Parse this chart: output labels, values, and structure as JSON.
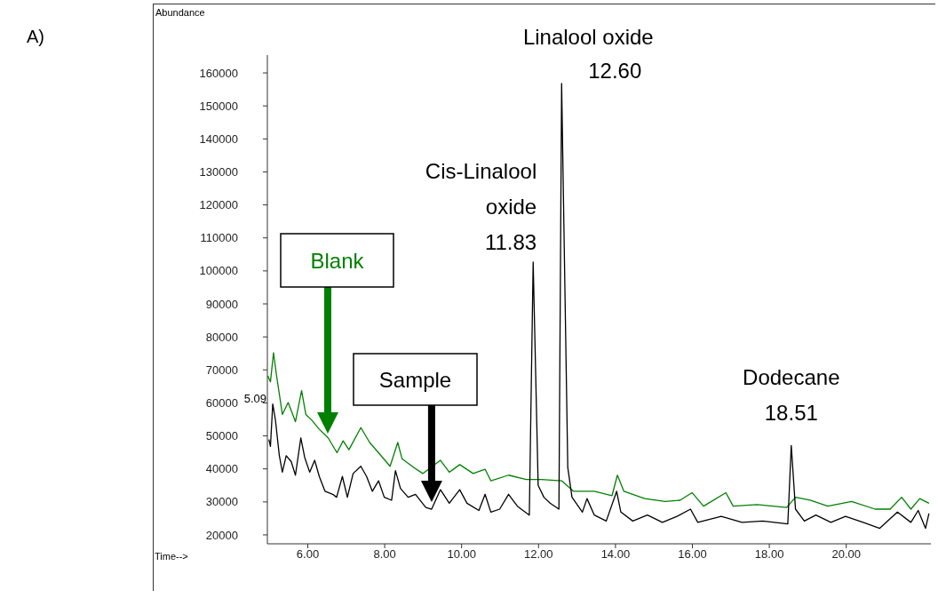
{
  "chart_data": {
    "type": "line",
    "xlabel": "Time-->",
    "ylabel": "Abundance",
    "xlim": [
      4.95,
      22.2
    ],
    "ylim": [
      17300,
      165400
    ],
    "xticks": [
      {
        "value": 6,
        "label": "6.00"
      },
      {
        "value": 8,
        "label": "8.00"
      },
      {
        "value": 10,
        "label": "10.00"
      },
      {
        "value": 12,
        "label": "12.00"
      },
      {
        "value": 14,
        "label": "14.00"
      },
      {
        "value": 16,
        "label": "16.00"
      },
      {
        "value": 18,
        "label": "18.00"
      },
      {
        "value": 20,
        "label": "20.00"
      }
    ],
    "yticks": [
      20000,
      30000,
      40000,
      50000,
      60000,
      70000,
      80000,
      90000,
      100000,
      110000,
      120000,
      130000,
      140000,
      150000,
      160000
    ],
    "series": [
      {
        "name": "Blank",
        "color": "#008000",
        "x": [
          4.96,
          5.03,
          5.11,
          5.19,
          5.34,
          5.49,
          5.68,
          5.84,
          5.95,
          6.11,
          6.3,
          6.53,
          6.76,
          6.92,
          7.07,
          7.38,
          7.61,
          7.84,
          8.14,
          8.34,
          8.45,
          8.76,
          8.99,
          9.45,
          9.68,
          9.95,
          10.3,
          10.61,
          10.76,
          11.22,
          11.68,
          12.07,
          12.6,
          12.91,
          13.45,
          13.91,
          14.05,
          14.22,
          14.76,
          15.29,
          15.68,
          15.99,
          16.29,
          16.87,
          17.06,
          17.68,
          18.45,
          18.68,
          19.06,
          19.52,
          20.14,
          20.75,
          21.14,
          21.44,
          21.68,
          21.91,
          22.15
        ],
        "values": [
          68200,
          66400,
          75200,
          68200,
          56500,
          60100,
          54300,
          63700,
          56500,
          54700,
          52000,
          49400,
          44900,
          48500,
          45800,
          52500,
          48000,
          44900,
          40800,
          48000,
          43100,
          40400,
          38600,
          42600,
          39000,
          41300,
          38600,
          39900,
          36400,
          38100,
          36800,
          36800,
          36400,
          33200,
          33200,
          31900,
          38100,
          33200,
          31000,
          30100,
          30500,
          32800,
          28700,
          32800,
          28700,
          29200,
          28300,
          31400,
          30500,
          28700,
          30100,
          27800,
          27800,
          31400,
          27800,
          31000,
          29600
        ]
      },
      {
        "name": "Sample",
        "color": "#000000",
        "x": [
          4.99,
          5.03,
          5.09,
          5.16,
          5.26,
          5.34,
          5.44,
          5.57,
          5.68,
          5.82,
          5.92,
          6.05,
          6.18,
          6.3,
          6.45,
          6.65,
          6.75,
          6.9,
          7.03,
          7.18,
          7.38,
          7.53,
          7.68,
          7.84,
          7.99,
          8.18,
          8.28,
          8.41,
          8.61,
          8.8,
          9.07,
          9.22,
          9.45,
          9.68,
          9.95,
          10.14,
          10.45,
          10.61,
          10.76,
          10.99,
          11.22,
          11.45,
          11.76,
          11.86,
          11.99,
          12.14,
          12.3,
          12.53,
          12.6,
          12.76,
          12.87,
          13.14,
          13.26,
          13.45,
          13.76,
          14.03,
          14.14,
          14.45,
          14.83,
          15.22,
          15.6,
          15.95,
          16.14,
          16.75,
          17.29,
          17.83,
          18.48,
          18.57,
          18.68,
          18.91,
          19.21,
          19.6,
          19.98,
          20.44,
          20.87,
          21.33,
          21.68,
          21.87,
          22.06,
          22.15
        ],
        "values": [
          48900,
          46800,
          59700,
          54800,
          44100,
          39000,
          44000,
          42200,
          38100,
          49400,
          43500,
          39000,
          42600,
          37700,
          33200,
          32300,
          31400,
          37700,
          31400,
          38600,
          40800,
          37700,
          33200,
          36400,
          31400,
          30500,
          39500,
          34100,
          31400,
          32300,
          28300,
          27800,
          33700,
          29600,
          33700,
          29600,
          27400,
          32300,
          26900,
          27800,
          32300,
          28700,
          26000,
          102700,
          35000,
          31400,
          29600,
          27800,
          156800,
          40400,
          31400,
          26900,
          31000,
          26000,
          24200,
          33200,
          26900,
          24200,
          26000,
          23800,
          25600,
          27800,
          23800,
          25600,
          23800,
          24200,
          23300,
          47100,
          27800,
          24200,
          26000,
          23800,
          25600,
          23800,
          22000,
          26900,
          23800,
          27400,
          22000,
          26500
        ]
      }
    ],
    "annotations": [
      "A)",
      {
        "text": "5.09",
        "x": 5.09,
        "y": 59700
      },
      {
        "text": "Cis-Linalool\noxide\n11.83",
        "x": 11.86,
        "y": 102700
      },
      {
        "text": "Linalool oxide\n12.60",
        "x": 12.6,
        "y": 156800
      },
      {
        "text": "Dodecane\n18.51",
        "x": 18.57,
        "y": 47100
      }
    ]
  }
}
